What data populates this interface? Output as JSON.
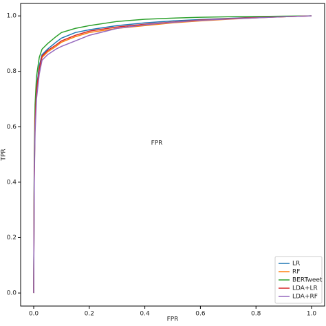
{
  "chart_data": {
    "type": "line",
    "xlabel": "FPR",
    "ylabel": "TPR",
    "annotation": "FPR",
    "x": [
      0,
      0.002,
      0.005,
      0.01,
      0.02,
      0.03,
      0.05,
      0.08,
      0.1,
      0.15,
      0.2,
      0.3,
      0.4,
      0.5,
      0.6,
      0.7,
      0.8,
      0.9,
      1.0
    ],
    "series": [
      {
        "name": "LR",
        "color": "#1f77b4",
        "values": [
          0,
          0.45,
          0.62,
          0.74,
          0.82,
          0.86,
          0.88,
          0.905,
          0.92,
          0.94,
          0.95,
          0.965,
          0.975,
          0.982,
          0.987,
          0.991,
          0.995,
          0.998,
          1.0
        ]
      },
      {
        "name": "RF",
        "color": "#ff7f0e",
        "values": [
          0,
          0.42,
          0.6,
          0.72,
          0.8,
          0.85,
          0.87,
          0.89,
          0.905,
          0.925,
          0.94,
          0.955,
          0.965,
          0.975,
          0.982,
          0.988,
          0.993,
          0.997,
          1.0
        ]
      },
      {
        "name": "BERTweet",
        "color": "#2ca02c",
        "values": [
          0,
          0.5,
          0.68,
          0.78,
          0.85,
          0.88,
          0.9,
          0.925,
          0.94,
          0.955,
          0.965,
          0.98,
          0.988,
          0.992,
          0.995,
          0.997,
          0.998,
          0.999,
          1.0
        ]
      },
      {
        "name": "LDA+LR",
        "color": "#d62728",
        "values": [
          0,
          0.44,
          0.62,
          0.73,
          0.81,
          0.855,
          0.875,
          0.895,
          0.91,
          0.93,
          0.945,
          0.96,
          0.97,
          0.978,
          0.985,
          0.99,
          0.994,
          0.997,
          1.0
        ]
      },
      {
        "name": "LDA+RF",
        "color": "#9467bd",
        "values": [
          0,
          0.4,
          0.58,
          0.7,
          0.79,
          0.84,
          0.86,
          0.88,
          0.89,
          0.91,
          0.93,
          0.955,
          0.968,
          0.977,
          0.984,
          0.989,
          0.993,
          0.997,
          1.0
        ]
      }
    ],
    "xlim": [
      -0.047,
      1.047
    ],
    "ylim": [
      -0.047,
      1.045
    ],
    "xticks": [
      {
        "value": 0,
        "label": "0.0"
      },
      {
        "value": 0.2,
        "label": "0.2"
      },
      {
        "value": 0.4,
        "label": "0.4"
      },
      {
        "value": 0.6,
        "label": "0.6"
      },
      {
        "value": 0.8,
        "label": "0.8"
      },
      {
        "value": 1.0,
        "label": "1.0"
      }
    ],
    "yticks": [
      {
        "value": 0,
        "label": "0.0"
      },
      {
        "value": 0.2,
        "label": "0.2"
      },
      {
        "value": 0.4,
        "label": "0.4"
      },
      {
        "value": 0.6,
        "label": "0.6"
      },
      {
        "value": 0.8,
        "label": "0.8"
      },
      {
        "value": 1.0,
        "label": "1.0"
      }
    ],
    "grid": false,
    "legend": "lower right"
  }
}
